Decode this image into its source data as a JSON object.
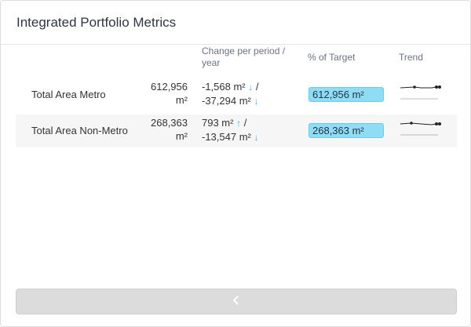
{
  "card": {
    "title": "Integrated Portfolio Metrics"
  },
  "headers": {
    "change_line1": "Change per period /",
    "change_line2": "year",
    "target": "% of Target",
    "trend": "Trend"
  },
  "rows": [
    {
      "metric": "Total Area Metro",
      "value_num": "612,956",
      "value_unit": "m²",
      "period_change": "-1,568 m²",
      "period_arrow": "↓",
      "period_sep": "/",
      "year_change": "-37,294 m²",
      "year_arrow": "↓",
      "target_value": "612,956 m²"
    },
    {
      "metric": "Total Area Non-Metro",
      "value_num": "268,363",
      "value_unit": "m²",
      "period_change": "793 m²",
      "period_arrow": "↑",
      "period_sep": "/",
      "year_change": "-13,547 m²",
      "year_arrow": "↓",
      "target_value": "268,363 m²"
    }
  ],
  "footer": {
    "back_icon": "chevron-left-icon"
  },
  "colors": {
    "pill": "#8fdcf5",
    "arrow": "#38b2ee",
    "footer": "#dcdcdc"
  }
}
